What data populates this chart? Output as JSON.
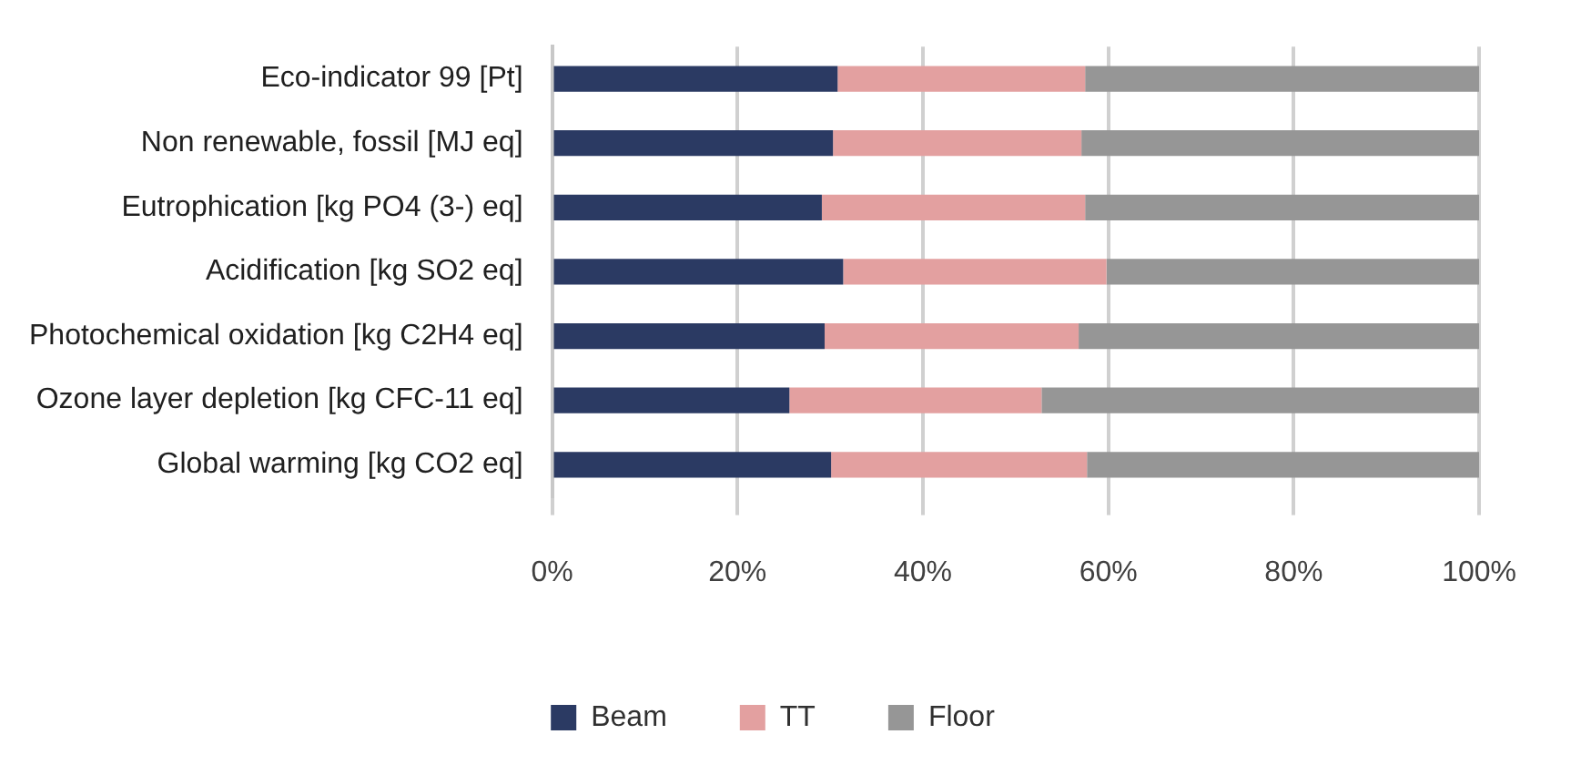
{
  "chart_data": {
    "type": "bar",
    "orientation": "horizontal",
    "stacked": true,
    "categories": [
      "Eco-indicator 99 [Pt]",
      "Non renewable, fossil [MJ eq]",
      "Eutrophication [kg PO4 (3-) eq]",
      "Acidification [kg SO2 eq]",
      "Photochemical oxidation [kg C2H4 eq]",
      "Ozone layer depletion [kg CFC-11 eq]",
      "Global warming [kg CO2 eq]"
    ],
    "series": [
      {
        "name": "Beam",
        "color": "#2b3a63",
        "values": [
          30.8,
          30.3,
          29.1,
          31.4,
          29.4,
          25.6,
          30.1
        ]
      },
      {
        "name": "TT",
        "color": "#e3a0a0",
        "values": [
          26.7,
          26.8,
          28.4,
          28.4,
          27.4,
          27.2,
          27.6
        ]
      },
      {
        "name": "Floor",
        "color": "#969696",
        "values": [
          42.5,
          42.9,
          42.5,
          40.2,
          43.2,
          47.2,
          42.3
        ]
      }
    ],
    "xlim": [
      0,
      100
    ],
    "xticks": [
      {
        "value": 0,
        "label": "0%"
      },
      {
        "value": 20,
        "label": "20%"
      },
      {
        "value": 40,
        "label": "40%"
      },
      {
        "value": 60,
        "label": "60%"
      },
      {
        "value": 80,
        "label": "80%"
      },
      {
        "value": 100,
        "label": "100%"
      }
    ],
    "grid": "x",
    "legend": "bottom"
  }
}
